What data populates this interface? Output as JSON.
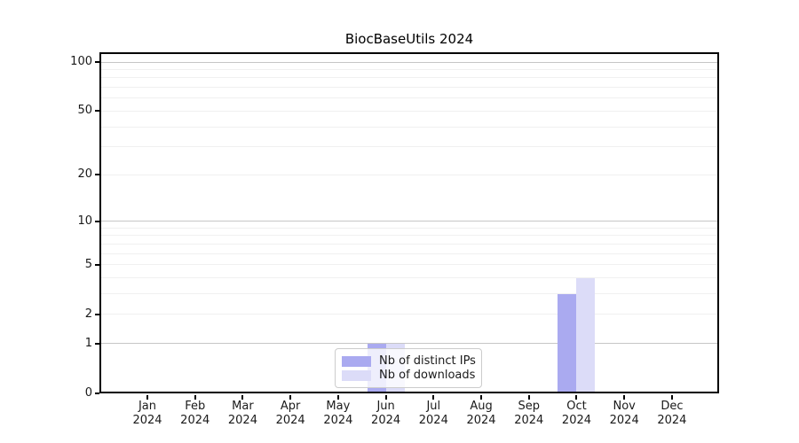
{
  "chart_data": {
    "type": "bar",
    "title": "BiocBaseUtils 2024",
    "categories": [
      "Jan",
      "Feb",
      "Mar",
      "Apr",
      "May",
      "Jun",
      "Jul",
      "Aug",
      "Sep",
      "Oct",
      "Nov",
      "Dec"
    ],
    "category_year": "2024",
    "series": [
      {
        "name": "Nb of distinct IPs",
        "color": "#aaaaf0",
        "values": [
          0,
          0,
          0,
          0,
          0,
          1,
          0,
          0,
          0,
          3,
          0,
          0
        ]
      },
      {
        "name": "Nb of downloads",
        "color": "#dcdcf8",
        "values": [
          0,
          0,
          0,
          0,
          0,
          1,
          0,
          0,
          0,
          4,
          0,
          0
        ]
      }
    ],
    "yscale": "log1p",
    "ylim": [
      0,
      116
    ],
    "yticks": [
      "0",
      "1",
      "2",
      "5",
      "10",
      "20",
      "50",
      "100"
    ],
    "grid": {
      "major": [
        1,
        10,
        100
      ],
      "minor": [
        2,
        3,
        4,
        5,
        6,
        7,
        8,
        9,
        20,
        30,
        40,
        50,
        60,
        70,
        80,
        90
      ]
    },
    "legend": {
      "position": "lower center",
      "entries": [
        "Nb of distinct IPs",
        "Nb of downloads"
      ]
    },
    "colors": {
      "axis": "#000000",
      "grid_major": "#c6c6c6",
      "grid_minor": "#f0f0f0",
      "text": "#1a1a1a",
      "legend_border": "#cccccc",
      "background": "#ffffff"
    }
  }
}
